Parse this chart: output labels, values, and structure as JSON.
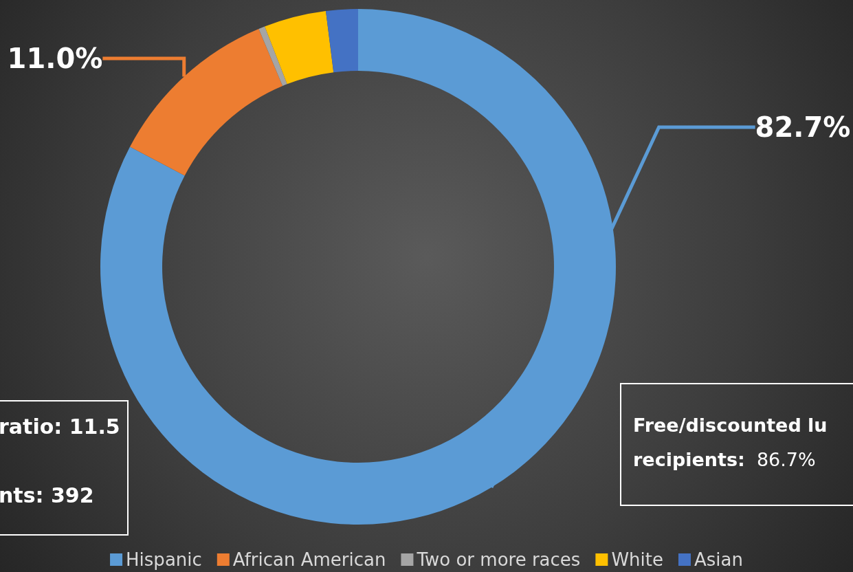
{
  "chart_data": {
    "type": "donut",
    "categories": [
      "Hispanic",
      "African American",
      "Two or more races",
      "White",
      "Asian"
    ],
    "values": [
      82.7,
      11.0,
      0.4,
      3.9,
      2.0
    ],
    "colors": [
      "#5b9bd5",
      "#ed7d31",
      "#a5a5a5",
      "#ffc000",
      "#4472c4"
    ],
    "value_labels": [
      "82.7%",
      "11.0%",
      null,
      null,
      null
    ],
    "legend": "bottom",
    "annotations": [
      "ratio: 11.5",
      "nts: 392",
      "Free/discounted lu",
      "recipients:  86.7%"
    ]
  }
}
